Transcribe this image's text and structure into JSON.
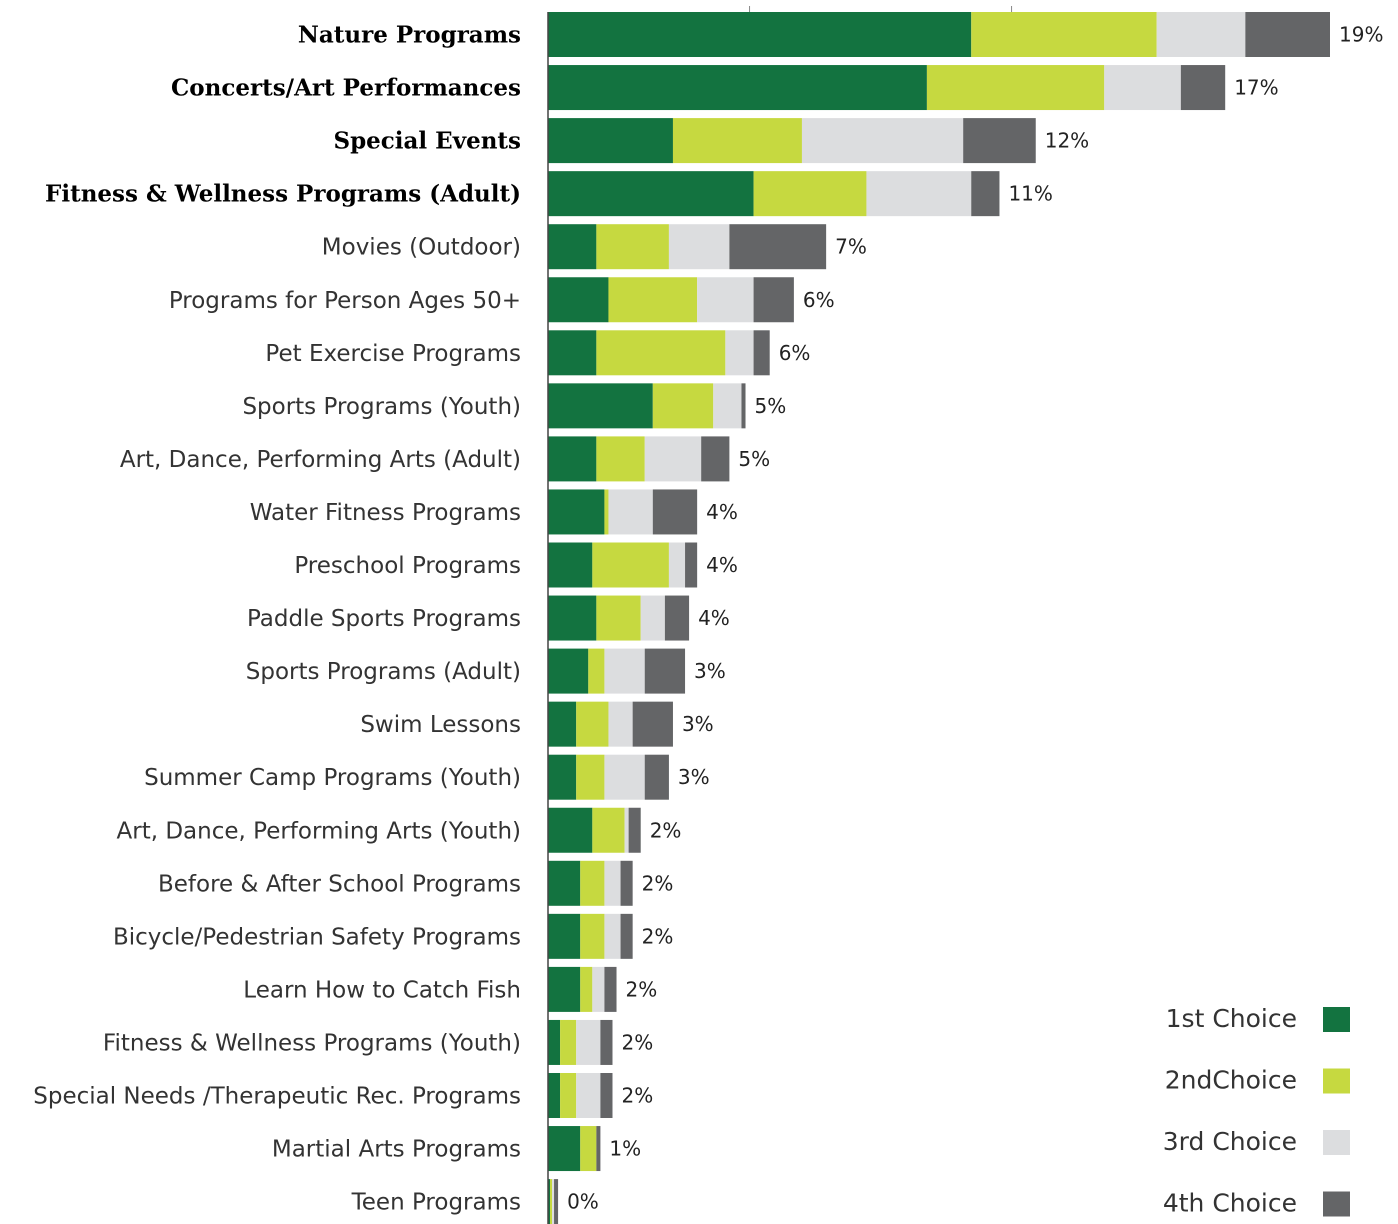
{
  "chart_data": {
    "type": "bar",
    "orientation": "horizontal",
    "stacked": true,
    "categories": [
      "Nature Programs",
      "Concerts/Art Performances",
      "Special Events",
      "Fitness & Wellness Programs (Adult)",
      "Movies (Outdoor)",
      "Programs for Person Ages 50+",
      "Pet Exercise Programs",
      "Sports Programs (Youth)",
      "Art, Dance, Performing Arts (Adult)",
      "Water Fitness Programs",
      "Preschool Programs",
      "Paddle Sports Programs",
      "Sports Programs (Adult)",
      "Swim Lessons",
      "Summer Camp Programs (Youth)",
      "Art, Dance, Performing Arts (Youth)",
      "Before & After School Programs",
      "Bicycle/Pedestrian Safety Programs",
      "Learn How to Catch Fish",
      "Fitness & Wellness Programs (Youth)",
      "Special Needs /Therapeutic Rec. Programs",
      "Martial Arts Programs",
      "Teen Programs"
    ],
    "bold_categories": [
      "Nature Programs",
      "Concerts/Art Performances",
      "Special Events",
      "Fitness & Wellness Programs (Adult)"
    ],
    "series": [
      {
        "name": "1st Choice",
        "color": "#137340",
        "values": [
          10.5,
          9.4,
          3.1,
          5.1,
          1.2,
          1.5,
          1.2,
          2.6,
          1.2,
          1.4,
          1.1,
          1.2,
          1.0,
          0.7,
          0.7,
          1.1,
          0.8,
          0.8,
          0.8,
          0.3,
          0.3,
          0.8,
          0.05
        ]
      },
      {
        "name": "2ndChoice",
        "color": "#c6d940",
        "values": [
          4.6,
          4.4,
          3.2,
          2.8,
          1.8,
          2.2,
          3.2,
          1.5,
          1.2,
          0.1,
          1.9,
          1.1,
          0.4,
          0.8,
          0.7,
          0.8,
          0.6,
          0.6,
          0.3,
          0.4,
          0.4,
          0.4,
          0.05
        ]
      },
      {
        "name": "3rd Choice",
        "color": "#dcdddf",
        "values": [
          2.2,
          1.9,
          4.0,
          2.6,
          1.5,
          1.4,
          0.7,
          0.7,
          1.4,
          1.1,
          0.4,
          0.6,
          1.0,
          0.6,
          1.0,
          0.1,
          0.4,
          0.4,
          0.3,
          0.6,
          0.6,
          0.0,
          0.05
        ]
      },
      {
        "name": "4th Choice",
        "color": "#646567",
        "values": [
          2.1,
          1.1,
          1.8,
          0.7,
          2.4,
          1.0,
          0.4,
          0.1,
          0.7,
          1.1,
          0.3,
          0.6,
          1.0,
          1.0,
          0.6,
          0.3,
          0.3,
          0.3,
          0.3,
          0.3,
          0.3,
          0.1,
          0.1
        ]
      }
    ],
    "totals": [
      "19%",
      "17%",
      "12%",
      "11%",
      "7%",
      "6%",
      "6%",
      "5%",
      "5%",
      "4%",
      "4%",
      "4%",
      "3%",
      "3%",
      "3%",
      "2%",
      "2%",
      "2%",
      "2%",
      "2%",
      "2%",
      "1%",
      "0%"
    ],
    "xlim": [
      0,
      19.4
    ],
    "grid": false,
    "legend": {
      "placement": "bottom-right",
      "entries": [
        "1st Choice",
        "2ndChoice",
        "3rd Choice",
        "4th Choice"
      ]
    }
  }
}
